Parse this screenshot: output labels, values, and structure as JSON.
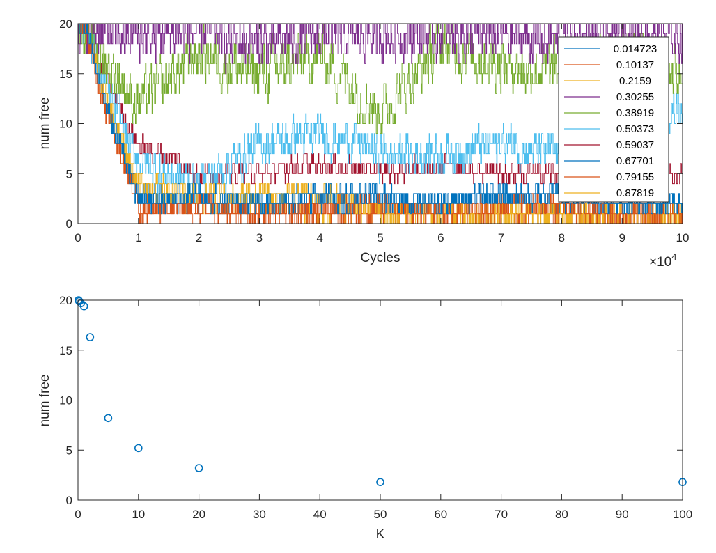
{
  "chart_data": [
    {
      "type": "line",
      "xlabel": "Cycles",
      "ylabel": "num free",
      "xlim": [
        0,
        100000
      ],
      "ylim": [
        0,
        20
      ],
      "x_exponent_label": "×10",
      "x_exponent_power": "4",
      "x_tick_labels": [
        "0",
        "1",
        "2",
        "3",
        "4",
        "5",
        "6",
        "7",
        "8",
        "9",
        "10"
      ],
      "y_tick_labels": [
        "0",
        "5",
        "10",
        "15",
        "20"
      ],
      "legend_position": "top-right",
      "series": [
        {
          "name": "0.014723",
          "color": "#0072BD",
          "x": [
            0,
            10000,
            20000,
            30000,
            40000,
            50000,
            60000,
            70000,
            80000,
            90000,
            100000
          ],
          "y": [
            20,
            2,
            3,
            2,
            3,
            3,
            2,
            3,
            3,
            2,
            2
          ]
        },
        {
          "name": "0.10137",
          "color": "#D95319",
          "x": [
            0,
            10000,
            20000,
            30000,
            40000,
            50000,
            60000,
            70000,
            80000,
            90000,
            100000
          ],
          "y": [
            20,
            1,
            2,
            1,
            2,
            2,
            1,
            2,
            2,
            1,
            1
          ]
        },
        {
          "name": "0.2159",
          "color": "#EDB120",
          "x": [
            0,
            10000,
            20000,
            30000,
            40000,
            50000,
            60000,
            70000,
            80000,
            90000,
            100000
          ],
          "y": [
            20,
            4,
            3,
            3,
            3,
            1,
            1,
            1,
            1,
            0,
            1
          ]
        },
        {
          "name": "0.30255",
          "color": "#7E2F8E",
          "x": [
            0,
            10000,
            20000,
            30000,
            40000,
            50000,
            60000,
            70000,
            80000,
            90000,
            100000
          ],
          "y": [
            20,
            19,
            19,
            18,
            19,
            19,
            19,
            19,
            18,
            19,
            19
          ]
        },
        {
          "name": "0.38919",
          "color": "#77AC30",
          "x": [
            0,
            10000,
            20000,
            30000,
            40000,
            50000,
            60000,
            70000,
            80000,
            90000,
            100000
          ],
          "y": [
            20,
            12,
            17,
            15,
            17,
            11,
            18,
            16,
            15,
            17,
            15
          ]
        },
        {
          "name": "0.50373",
          "color": "#4DBEEE",
          "x": [
            0,
            10000,
            20000,
            30000,
            40000,
            50000,
            60000,
            70000,
            80000,
            90000,
            100000
          ],
          "y": [
            20,
            6,
            4,
            8,
            9,
            7,
            7,
            8,
            7,
            10,
            12
          ]
        },
        {
          "name": "0.59037",
          "color": "#A2142F",
          "x": [
            0,
            10000,
            20000,
            30000,
            40000,
            50000,
            60000,
            70000,
            80000,
            90000,
            100000
          ],
          "y": [
            20,
            8,
            5,
            5,
            6,
            5,
            6,
            5,
            5,
            4,
            5
          ]
        },
        {
          "name": "0.67701",
          "color": "#0072BD",
          "x": [
            0,
            10000,
            20000,
            30000,
            40000,
            50000,
            60000,
            70000,
            80000,
            90000,
            100000
          ],
          "y": [
            20,
            3,
            2,
            2,
            2,
            2,
            2,
            3,
            2,
            2,
            2
          ]
        },
        {
          "name": "0.79155",
          "color": "#D95319",
          "x": [
            0,
            10000,
            20000,
            30000,
            40000,
            50000,
            60000,
            70000,
            80000,
            90000,
            100000
          ],
          "y": [
            20,
            2,
            1,
            1,
            1,
            1,
            1,
            1,
            1,
            0,
            1
          ]
        },
        {
          "name": "0.87819",
          "color": "#EDB120",
          "x": [
            0,
            10000,
            20000,
            30000,
            40000,
            50000,
            60000,
            70000,
            80000,
            90000,
            100000
          ],
          "y": [
            20,
            3,
            2,
            2,
            1,
            1,
            1,
            1,
            1,
            1,
            1
          ]
        }
      ]
    },
    {
      "type": "scatter",
      "xlabel": "K",
      "ylabel": "num free",
      "xlim": [
        0,
        100
      ],
      "ylim": [
        0,
        20
      ],
      "x_tick_labels": [
        "0",
        "10",
        "20",
        "30",
        "40",
        "50",
        "60",
        "70",
        "80",
        "90",
        "100"
      ],
      "y_tick_labels": [
        "0",
        "5",
        "10",
        "15",
        "20"
      ],
      "marker": "circle",
      "color": "#0072BD",
      "x": [
        0.1,
        0.2,
        0.5,
        1,
        2,
        5,
        10,
        20,
        50,
        100
      ],
      "y": [
        20,
        19.9,
        19.7,
        19.4,
        16.3,
        8.2,
        5.2,
        3.2,
        1.8,
        1.8
      ]
    }
  ]
}
